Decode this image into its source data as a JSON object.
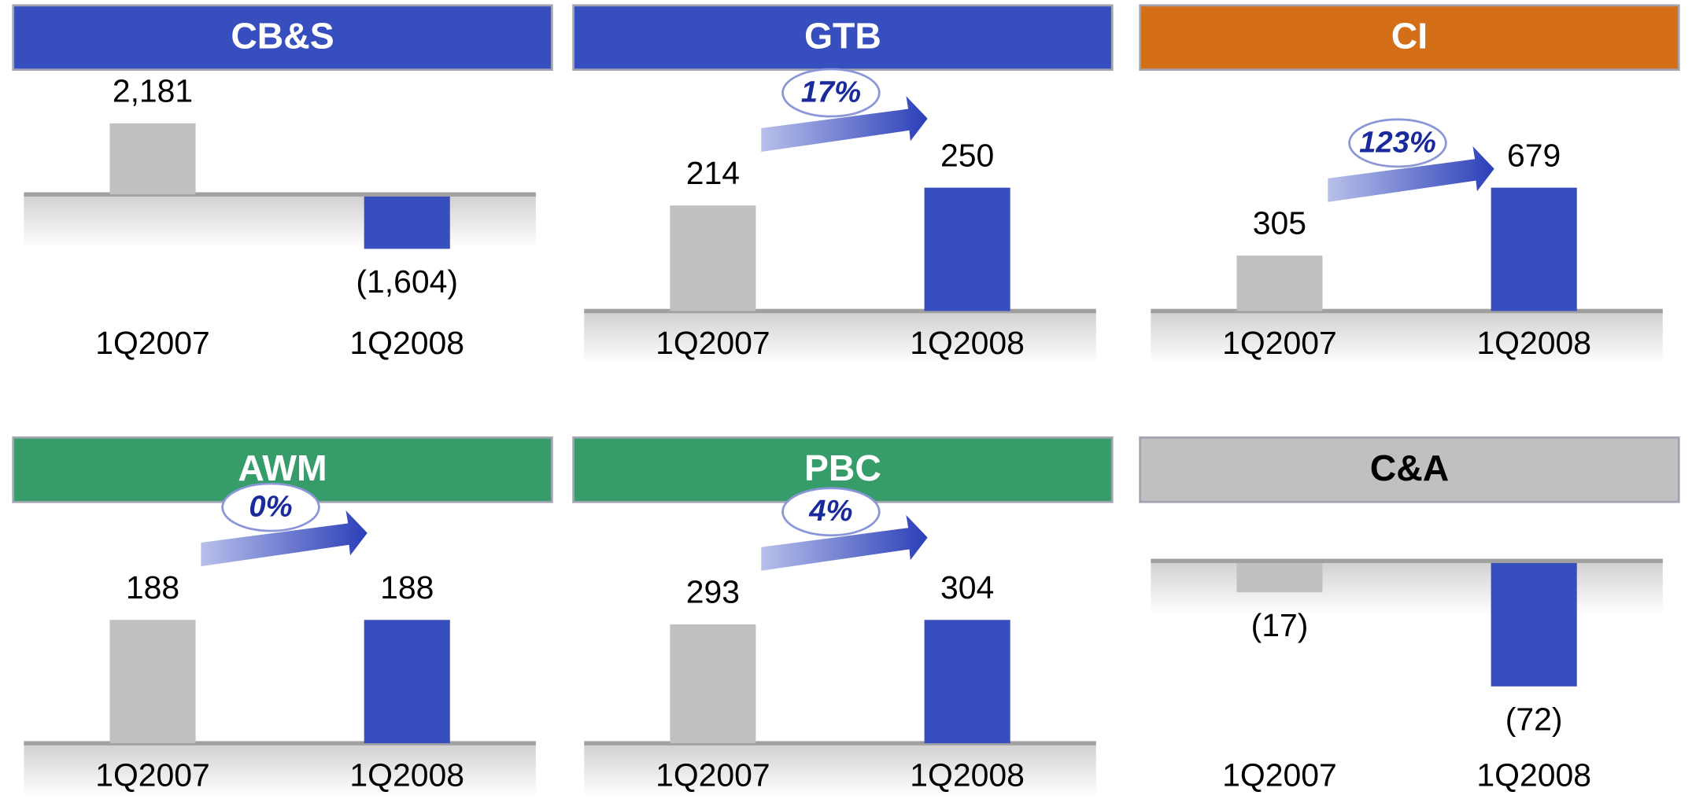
{
  "chart_data": [
    {
      "type": "bar",
      "title": "CB&S",
      "header_color": "#374fbe",
      "title_color": "#ffffff",
      "categories": [
        "1Q2007",
        "1Q2008"
      ],
      "values": [
        2181,
        -1604
      ],
      "value_labels": [
        "2,181",
        "(1,604)"
      ],
      "colors": [
        "#c0c0c0",
        "#374fbe"
      ]
    },
    {
      "type": "bar",
      "title": "GTB",
      "header_color": "#374fbe",
      "title_color": "#ffffff",
      "categories": [
        "1Q2007",
        "1Q2008"
      ],
      "values": [
        214,
        250
      ],
      "value_labels": [
        "214",
        "250"
      ],
      "colors": [
        "#c0c0c0",
        "#374fbe"
      ],
      "annotation": "17%"
    },
    {
      "type": "bar",
      "title": "CI",
      "header_color": "#d46f17",
      "title_color": "#ffffff",
      "categories": [
        "1Q2007",
        "1Q2008"
      ],
      "values": [
        305,
        679
      ],
      "value_labels": [
        "305",
        "679"
      ],
      "colors": [
        "#c0c0c0",
        "#374fbe"
      ],
      "annotation": "123%"
    },
    {
      "type": "bar",
      "title": "AWM",
      "header_color": "#369c6a",
      "title_color": "#ffffff",
      "categories": [
        "1Q2007",
        "1Q2008"
      ],
      "values": [
        188,
        188
      ],
      "value_labels": [
        "188",
        "188"
      ],
      "colors": [
        "#c0c0c0",
        "#374fbe"
      ],
      "annotation": "0%"
    },
    {
      "type": "bar",
      "title": "PBC",
      "header_color": "#369c6a",
      "title_color": "#ffffff",
      "categories": [
        "1Q2007",
        "1Q2008"
      ],
      "values": [
        293,
        304
      ],
      "value_labels": [
        "293",
        "304"
      ],
      "colors": [
        "#c0c0c0",
        "#374fbe"
      ],
      "annotation": "4%"
    },
    {
      "type": "bar",
      "title": "C&A",
      "header_color": "#c0c0c0",
      "title_color": "#000000",
      "categories": [
        "1Q2007",
        "1Q2008"
      ],
      "values": [
        -17,
        -72
      ],
      "value_labels": [
        "(17)",
        "(72)"
      ],
      "colors": [
        "#c0c0c0",
        "#374fbe"
      ]
    }
  ]
}
